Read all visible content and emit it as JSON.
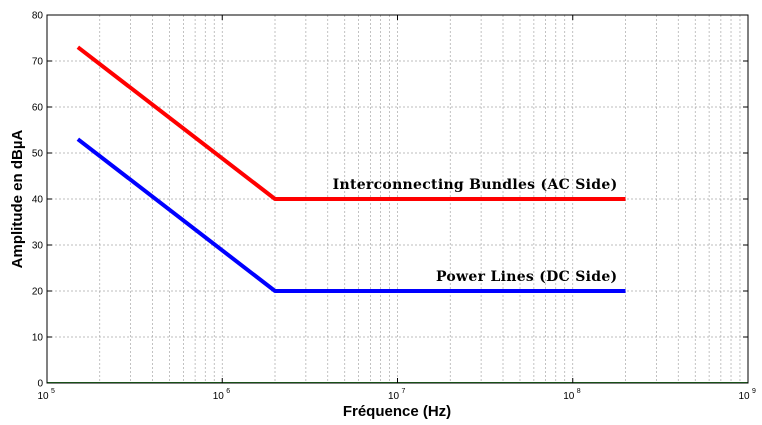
{
  "chart_data": {
    "type": "line",
    "xlabel": "Fréquence (Hz)",
    "ylabel": "Amplitude en dBµA",
    "xscale": "log",
    "xlim": [
      100000,
      1000000000
    ],
    "ylim": [
      0,
      80
    ],
    "grid": true,
    "x_ticks": [
      {
        "base": "10",
        "exp": "5",
        "value": 100000
      },
      {
        "base": "10",
        "exp": "6",
        "value": 1000000
      },
      {
        "base": "10",
        "exp": "7",
        "value": 10000000
      },
      {
        "base": "10",
        "exp": "8",
        "value": 100000000
      },
      {
        "base": "10",
        "exp": "9",
        "value": 1000000000
      }
    ],
    "y_ticks": [
      "0",
      "10",
      "20",
      "30",
      "40",
      "50",
      "60",
      "70",
      "80"
    ],
    "series": [
      {
        "name": "Interconnecting Bundles (AC Side)",
        "color": "#ff0000",
        "x": [
          150000,
          2000000,
          200000000
        ],
        "y": [
          73,
          40,
          40
        ]
      },
      {
        "name": "Power Lines (DC Side)",
        "color": "#0000ff",
        "x": [
          150000,
          2000000,
          200000000
        ],
        "y": [
          53,
          20,
          20
        ]
      }
    ]
  }
}
